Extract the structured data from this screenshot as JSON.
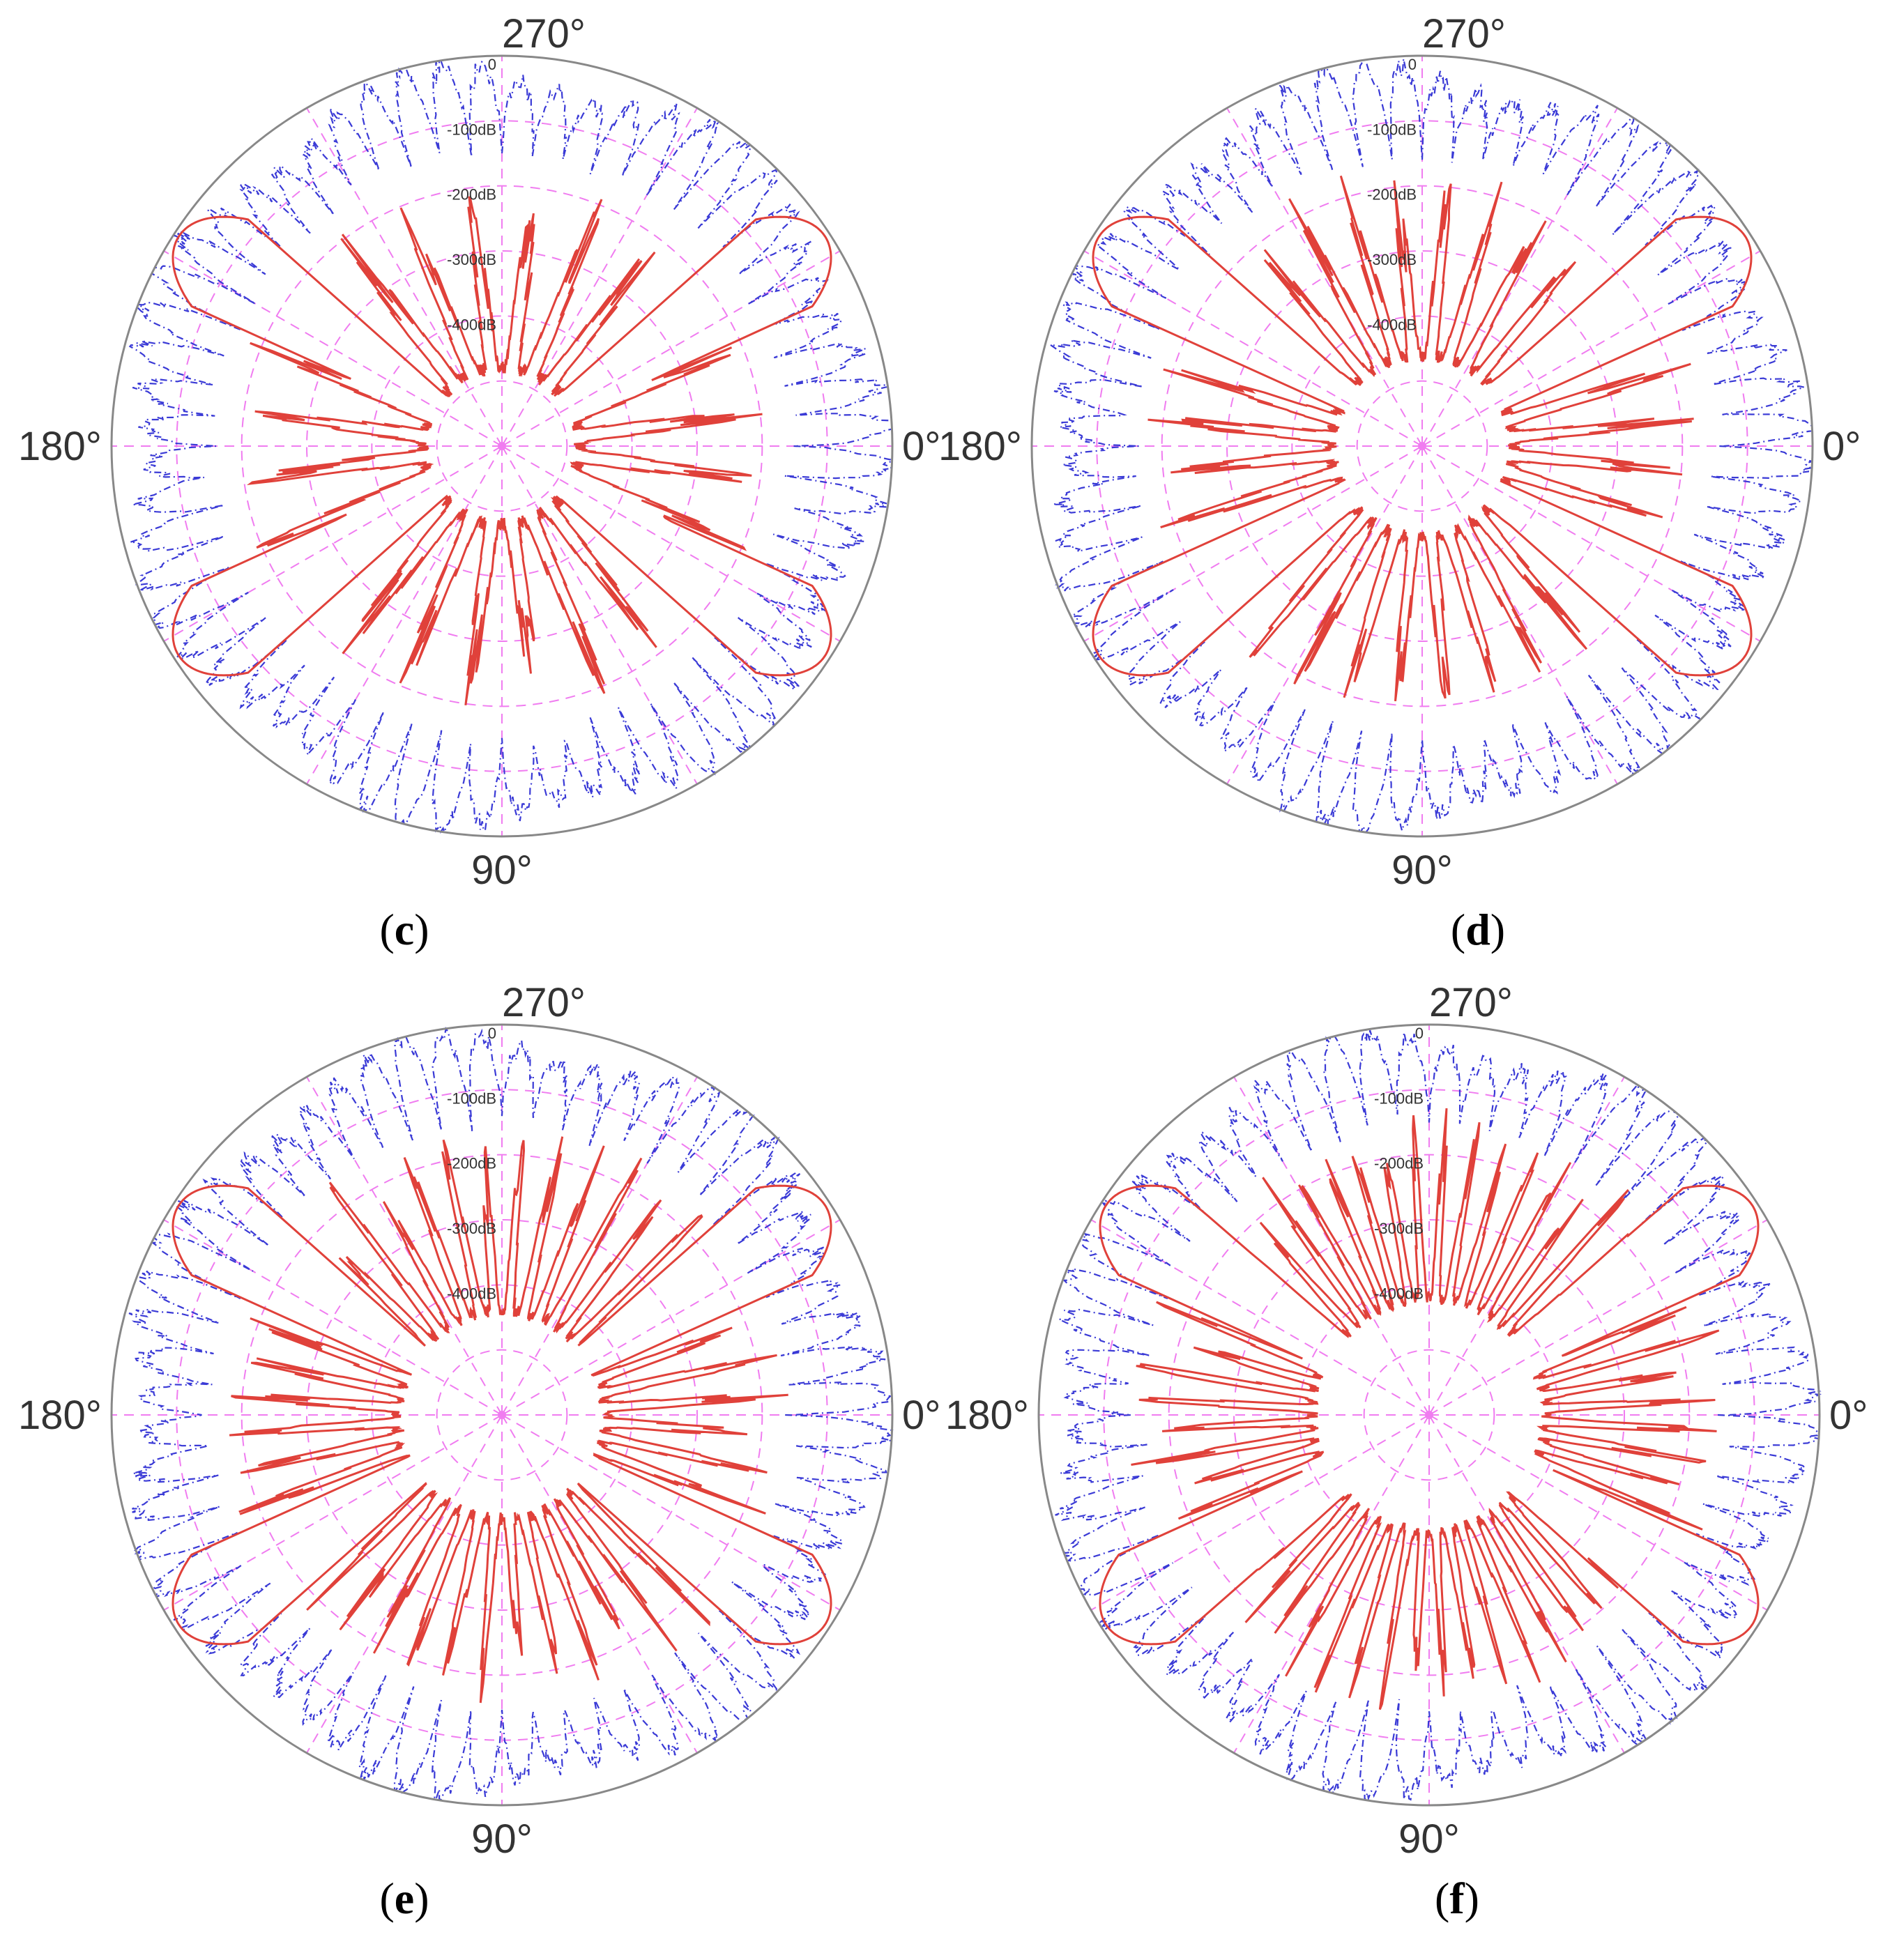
{
  "chart_data": [
    {
      "type": "polar-line",
      "panel_label": "c",
      "angle_labels": {
        "0": "0°",
        "90": "90°",
        "180": "180°",
        "270": "270°"
      },
      "radial_axis": {
        "tick_labels": [
          "0",
          "-100dB",
          "-200dB",
          "-300dB",
          "-400dB"
        ],
        "tick_values": [
          0,
          -100,
          -200,
          -300,
          -400
        ],
        "range": [
          -600,
          0
        ]
      },
      "grid": true,
      "series": [
        {
          "color": "#e0413a",
          "style": "solid",
          "beam_peaks_deg": [
            33,
            147,
            213,
            327
          ],
          "lobe_count": 12,
          "floor_db": -480
        },
        {
          "color": "#3a3ad6",
          "style": "dash-dot",
          "lobe_count": 60,
          "floor_db": -150
        }
      ]
    },
    {
      "type": "polar-line",
      "panel_label": "d",
      "angle_labels": {
        "0": "0°",
        "90": "90°",
        "180": "180°",
        "270": "270°"
      },
      "radial_axis": {
        "tick_labels": [
          "0",
          "-100dB",
          "-200dB",
          "-300dB",
          "-400dB"
        ],
        "tick_values": [
          0,
          -100,
          -200,
          -300,
          -400
        ],
        "range": [
          -600,
          0
        ]
      },
      "grid": true,
      "series": [
        {
          "color": "#e0413a",
          "style": "solid",
          "beam_peaks_deg": [
            33,
            147,
            213,
            327
          ],
          "lobe_count": 16,
          "floor_db": -460
        },
        {
          "color": "#3a3ad6",
          "style": "dash-dot",
          "lobe_count": 60,
          "floor_db": -150
        }
      ]
    },
    {
      "type": "polar-line",
      "panel_label": "e",
      "angle_labels": {
        "0": "0°",
        "90": "90°",
        "180": "180°",
        "270": "270°"
      },
      "radial_axis": {
        "tick_labels": [
          "0",
          "-100dB",
          "-200dB",
          "-300dB",
          "-400dB"
        ],
        "tick_values": [
          0,
          -100,
          -200,
          -300,
          -400
        ],
        "range": [
          -600,
          0
        ]
      },
      "grid": true,
      "series": [
        {
          "color": "#e0413a",
          "style": "solid",
          "beam_peaks_deg": [
            33,
            147,
            213,
            327
          ],
          "lobe_count": 22,
          "floor_db": -440
        },
        {
          "color": "#3a3ad6",
          "style": "dash-dot",
          "lobe_count": 60,
          "floor_db": -150
        }
      ]
    },
    {
      "type": "polar-line",
      "panel_label": "f",
      "angle_labels": {
        "0": "0°",
        "90": "90°",
        "180": "180°",
        "270": "270°"
      },
      "radial_axis": {
        "tick_labels": [
          "0",
          "-100dB",
          "-200dB",
          "-300dB",
          "-400dB"
        ],
        "tick_values": [
          0,
          -100,
          -200,
          -300,
          -400
        ],
        "range": [
          -600,
          0
        ]
      },
      "grid": true,
      "series": [
        {
          "color": "#e0413a",
          "style": "solid",
          "beam_peaks_deg": [
            33,
            147,
            213,
            327
          ],
          "lobe_count": 28,
          "floor_db": -420
        },
        {
          "color": "#3a3ad6",
          "style": "dash-dot",
          "lobe_count": 60,
          "floor_db": -150
        }
      ]
    }
  ]
}
